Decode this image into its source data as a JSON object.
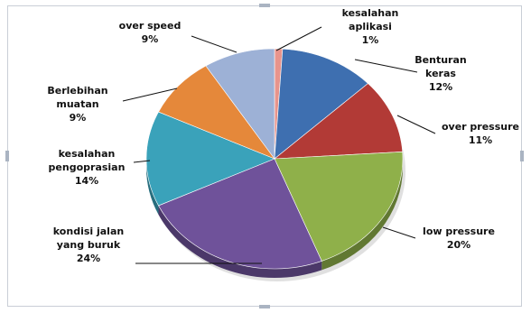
{
  "chart_data": {
    "type": "pie",
    "title": "",
    "slices": [
      {
        "lines": [
          "kesalahan",
          "aplikasi",
          "1%"
        ],
        "value": 1,
        "color": "#e8948c"
      },
      {
        "lines": [
          "Benturan",
          "keras",
          "12%"
        ],
        "value": 12,
        "color": "#3e6fb0"
      },
      {
        "lines": [
          "over pressure",
          "11%"
        ],
        "value": 11,
        "color": "#b23a36"
      },
      {
        "lines": [
          "low pressure",
          "20%"
        ],
        "value": 20,
        "color": "#8fb04a"
      },
      {
        "lines": [
          "kondisi  jalan",
          "yang buruk",
          "24%"
        ],
        "value": 24,
        "color": "#6f529a"
      },
      {
        "lines": [
          "kesalahan",
          "pengoprasian",
          "14%"
        ],
        "value": 14,
        "color": "#3aa2ba"
      },
      {
        "lines": [
          "Berlebihan",
          "muatan",
          "9%"
        ],
        "value": 9,
        "color": "#e5883a"
      },
      {
        "lines": [
          "over speed",
          "9%"
        ],
        "value": 9,
        "color": "#9db1d6"
      }
    ]
  }
}
